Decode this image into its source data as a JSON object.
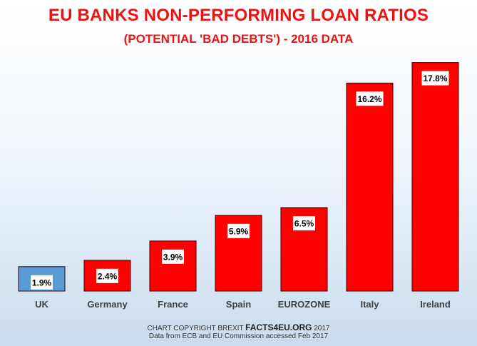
{
  "colors": {
    "title": "#ee1111",
    "bar_default": "#ff0000",
    "bar_highlight": "#5b9bd5",
    "bar_stroke": "#3a0000",
    "label_text": "#000000",
    "axis_text": "#404040"
  },
  "chart_data": {
    "type": "bar",
    "title": "EU BANKS NON-PERFORMING LOAN RATIOS",
    "subtitle": "(POTENTIAL 'BAD DEBTS') - 2016 DATA",
    "xlabel": "",
    "ylabel": "",
    "categories": [
      "UK",
      "Germany",
      "France",
      "Spain",
      "EUROZONE",
      "Italy",
      "Ireland"
    ],
    "values": [
      1.9,
      2.4,
      3.9,
      5.9,
      6.5,
      16.2,
      17.8
    ],
    "data_labels": [
      "1.9%",
      "2.4%",
      "3.9%",
      "5.9%",
      "6.5%",
      "16.2%",
      "17.8%"
    ],
    "highlight_index": 0,
    "grid": false,
    "legend": "none"
  },
  "footer": {
    "copyright_prefix": "CHART COPYRIGHT BREXIT ",
    "copyright_brand": "FACTS4EU.ORG",
    "copyright_suffix": " 2017",
    "source": "Data from ECB and EU Commission accessed Feb 2017"
  }
}
